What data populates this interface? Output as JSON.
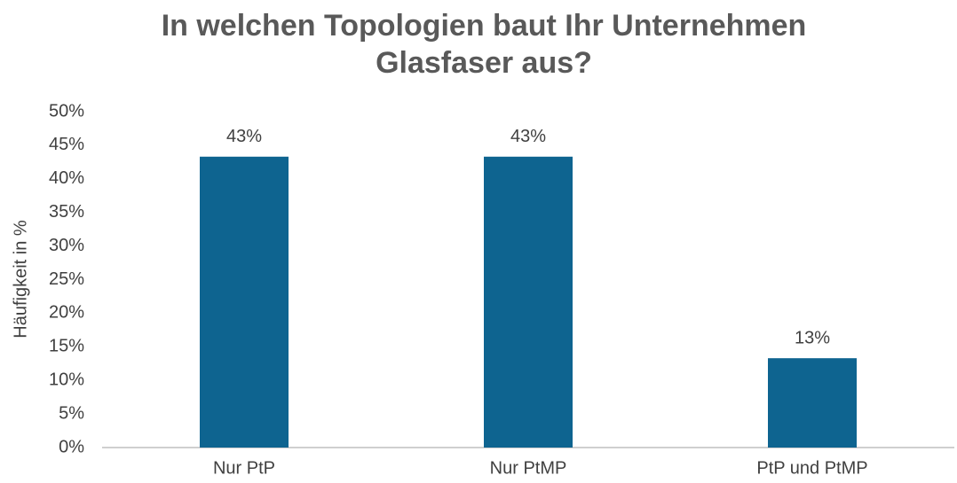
{
  "chart_data": {
    "type": "bar",
    "title": "In welchen Topologien baut Ihr Unternehmen Glasfaser aus?",
    "y_label": "Häufigkeit in %",
    "categories": [
      "Nur PtP",
      "Nur PtMP",
      "PtP und PtMP"
    ],
    "values": [
      43.3,
      43.3,
      13.3
    ],
    "value_labels": [
      "43%",
      "43%",
      "13%"
    ],
    "color": "#0e6490",
    "ylim": [
      0,
      50
    ],
    "yticks": [
      {
        "value": 0,
        "label": "0%"
      },
      {
        "value": 5,
        "label": "5%"
      },
      {
        "value": 10,
        "label": "10%"
      },
      {
        "value": 15,
        "label": "15%"
      },
      {
        "value": 20,
        "label": "20%"
      },
      {
        "value": 25,
        "label": "25%"
      },
      {
        "value": 30,
        "label": "30%"
      },
      {
        "value": 35,
        "label": "35%"
      },
      {
        "value": 40,
        "label": "40%"
      },
      {
        "value": 45,
        "label": "45%"
      },
      {
        "value": 50,
        "label": "50%"
      }
    ],
    "grid": false
  }
}
